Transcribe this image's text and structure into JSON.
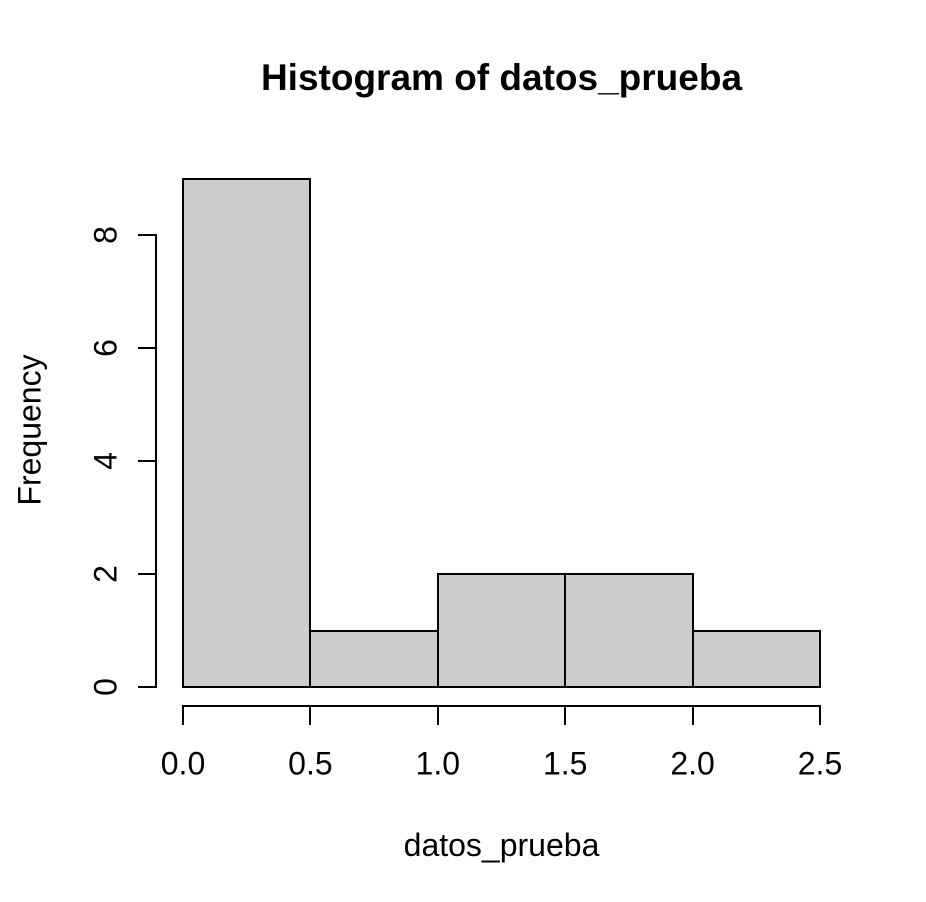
{
  "chart_data": {
    "type": "bar",
    "subtype": "histogram",
    "title": "Histogram of datos_prueba",
    "xlabel": "datos_prueba",
    "ylabel": "Frequency",
    "breaks": [
      0.0,
      0.5,
      1.0,
      1.5,
      2.0,
      2.5
    ],
    "counts": [
      9,
      1,
      2,
      2,
      1
    ],
    "x_ticks": [
      0.0,
      0.5,
      1.0,
      1.5,
      2.0,
      2.5
    ],
    "x_tick_labels": [
      "0.0",
      "0.5",
      "1.0",
      "1.5",
      "2.0",
      "2.5"
    ],
    "y_ticks": [
      0,
      2,
      4,
      6,
      8
    ],
    "y_tick_labels": [
      "0",
      "2",
      "4",
      "6",
      "8"
    ],
    "xlim": [
      0.0,
      2.5
    ],
    "ylim": [
      0,
      9
    ],
    "grid": false,
    "legend": null,
    "bar_fill": "#cccccc",
    "bar_border": "#000000",
    "axis_color": "#000000",
    "text_color": "#000000",
    "background": "#ffffff"
  }
}
